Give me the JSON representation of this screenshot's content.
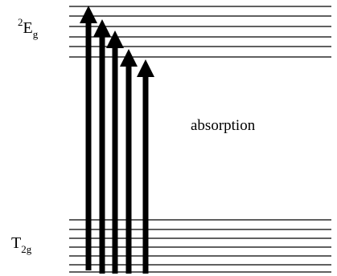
{
  "upper_state": {
    "superscript": "2",
    "letter": "E",
    "subscript": "g"
  },
  "lower_state": {
    "letter": "T",
    "subscript": "2g"
  },
  "process_label": "absorption",
  "colors": {
    "line": "#000000",
    "arrow": "#000000",
    "background": "#ffffff"
  }
}
